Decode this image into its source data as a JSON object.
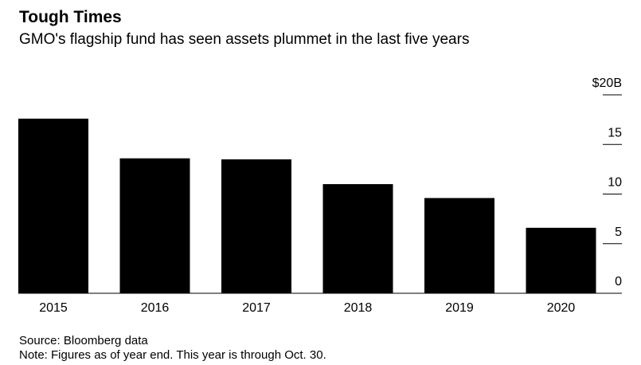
{
  "chart_data": {
    "type": "bar",
    "title": "Tough Times",
    "subtitle": "GMO's flagship fund has seen assets plummet in the last five years",
    "categories": [
      "2015",
      "2016",
      "2017",
      "2018",
      "2019",
      "2020"
    ],
    "values": [
      17.6,
      13.6,
      13.5,
      11.0,
      9.6,
      6.6
    ],
    "color": "#000000",
    "ylim": [
      0,
      20
    ],
    "yticks": [
      0,
      5,
      10,
      15,
      {
        "value": 20,
        "label": "$20B"
      }
    ],
    "source": "Source: Bloomberg data",
    "note": "Note: Figures as of year end. This year is through Oct. 30."
  }
}
